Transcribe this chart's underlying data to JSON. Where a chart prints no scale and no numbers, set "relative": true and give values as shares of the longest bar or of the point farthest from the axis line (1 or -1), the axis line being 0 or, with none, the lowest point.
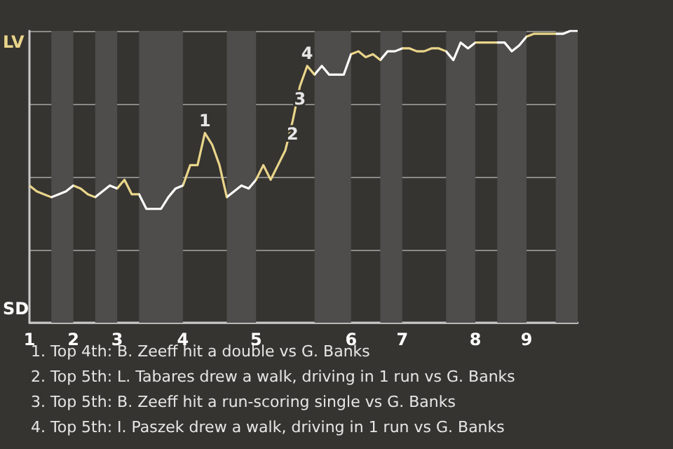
{
  "chart_data": {
    "type": "line",
    "relative": true,
    "grid": "y",
    "marker": "none",
    "categories": [
      "1",
      null,
      null,
      null,
      null,
      null,
      "2",
      null,
      null,
      null,
      null,
      null,
      "3",
      null,
      null,
      null,
      null,
      null,
      null,
      null,
      null,
      "4",
      null,
      null,
      null,
      null,
      null,
      null,
      null,
      null,
      null,
      "5",
      null,
      null,
      null,
      null,
      null,
      null,
      null,
      null,
      null,
      null,
      null,
      null,
      "6",
      null,
      null,
      null,
      null,
      null,
      null,
      "7",
      null,
      null,
      null,
      null,
      null,
      null,
      null,
      null,
      null,
      "8",
      null,
      null,
      null,
      null,
      null,
      null,
      "9",
      null,
      null,
      null,
      null,
      null,
      null,
      null
    ],
    "series": [
      {
        "values": [
          0.47,
          0.45,
          0.44,
          0.43,
          0.44,
          0.45,
          0.47,
          0.46,
          0.44,
          0.43,
          0.45,
          0.47,
          0.46,
          0.49,
          0.44,
          0.44,
          0.39,
          0.39,
          0.39,
          0.43,
          0.46,
          0.47,
          0.54,
          0.54,
          0.65,
          0.61,
          0.54,
          0.43,
          0.45,
          0.47,
          0.46,
          0.49,
          0.54,
          0.49,
          0.54,
          0.59,
          0.69,
          0.81,
          0.88,
          0.85,
          0.88,
          0.85,
          0.85,
          0.85,
          0.92,
          0.93,
          0.91,
          0.92,
          0.9,
          0.93,
          0.93,
          0.94,
          0.94,
          0.93,
          0.93,
          0.94,
          0.94,
          0.93,
          0.9,
          0.96,
          0.94,
          0.96,
          0.96,
          0.96,
          0.96,
          0.96,
          0.93,
          0.95,
          0.98,
          0.99,
          0.99,
          0.99,
          0.99,
          0.99,
          1.0,
          1
        ],
        "colors": [
          "#e9d58a",
          "#e9d58a",
          "#e9d58a",
          "#ffffff",
          "#ffffff",
          "#ffffff",
          "#e9d58a",
          "#e9d58a",
          "#e9d58a",
          "#ffffff",
          "#ffffff",
          "#ffffff",
          "#e9d58a",
          "#e9d58a",
          "#e9d58a",
          "#ffffff",
          "#ffffff",
          "#ffffff",
          "#ffffff",
          "#ffffff",
          "#ffffff",
          "#e9d58a",
          "#e9d58a",
          "#e9d58a",
          "#e9d58a",
          "#e9d58a",
          "#e9d58a",
          "#ffffff",
          "#ffffff",
          "#ffffff",
          "#ffffff",
          "#e9d58a",
          "#e9d58a",
          "#e9d58a",
          "#e9d58a",
          "#e9d58a",
          "#e9d58a",
          "#e9d58a",
          "#e9d58a",
          "#ffffff",
          "#ffffff",
          "#ffffff",
          "#ffffff",
          "#ffffff",
          "#e9d58a",
          "#e9d58a",
          "#e9d58a",
          "#e9d58a",
          "#ffffff",
          "#ffffff",
          "#ffffff",
          "#e9d58a",
          "#e9d58a",
          "#e9d58a",
          "#e9d58a",
          "#e9d58a",
          "#e9d58a",
          "#ffffff",
          "#ffffff",
          "#ffffff",
          "#ffffff",
          "#e9d58a",
          "#e9d58a",
          "#e9d58a",
          "#ffffff",
          "#ffffff",
          "#ffffff",
          "#ffffff",
          "#e9d58a",
          "#e9d58a",
          "#e9d58a",
          "#e9d58a",
          "#ffffff",
          "#ffffff",
          "#ffffff",
          "#ffffff"
        ]
      }
    ],
    "annotations": [
      "LV",
      "SD",
      {
        "text": "1",
        "y": 0.65
      },
      {
        "text": "2",
        "y": 0.69
      },
      {
        "text": "3",
        "y": 0.81
      },
      {
        "text": "4",
        "y": 0.88
      },
      "1. Top 4th: B. Zeeff hit a double vs G. Banks",
      "2. Top 5th: L. Tabares drew a walk, driving in 1 run vs G. Banks",
      "3. Top 5th: B. Zeeff hit a run-scoring single vs G. Banks",
      "4. Top 5th: I. Paszek drew a walk, driving in 1 run vs G. Banks"
    ]
  }
}
